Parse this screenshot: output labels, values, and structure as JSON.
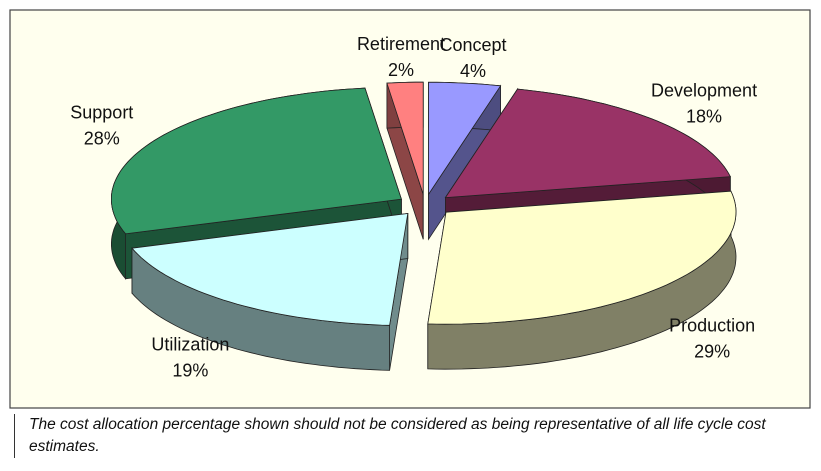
{
  "chart_data": {
    "type": "pie",
    "categories": [
      "Concept",
      "Development",
      "Production",
      "Utilization",
      "Support",
      "Retirement"
    ],
    "values": [
      4,
      18,
      29,
      19,
      28,
      2
    ],
    "value_labels": [
      "4%",
      "18%",
      "29%",
      "19%",
      "28%",
      "2%"
    ],
    "colors": [
      "#9999ff",
      "#993366",
      "#ffffcc",
      "#ccffff",
      "#339966",
      "#ff8080"
    ],
    "note": "The cost allocation percentage shown should not be considered as being representative of all life cycle cost estimates."
  }
}
